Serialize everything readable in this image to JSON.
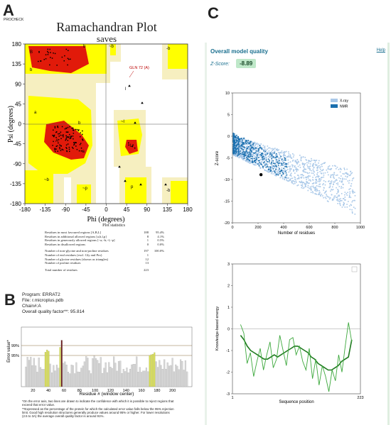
{
  "panelA": {
    "letter": "A",
    "tag": "PROCHECK",
    "title": "Ramachandran Plot",
    "subtitle": "saves",
    "ylabel": "Psi (degrees)",
    "xlabel": "Phi (degrees)",
    "xticks": [
      "-180",
      "-135",
      "-90",
      "-45",
      "0",
      "45",
      "90",
      "135",
      "180"
    ],
    "yticks": [
      "180",
      "135",
      "90",
      "45",
      "0",
      "-45",
      "-90",
      "-135",
      "-180"
    ],
    "annotation": "GLN 72 (A)",
    "region_labels": [
      "B",
      "b",
      "b",
      "a",
      "A",
      "b",
      "L",
      "l",
      "-b",
      "~b",
      "p",
      "~l",
      "~a",
      "~p",
      "-b",
      "~b"
    ],
    "stats_title": "Plot statistics",
    "stats": [
      {
        "label": "Residues in most favoured regions [A,B,L]",
        "n": "188",
        "p": "95.4%"
      },
      {
        "label": "Residues in additional allowed regions [a,b,l,p]",
        "n": "8",
        "p": "4.1%"
      },
      {
        "label": "Residues in generously allowed regions [~a,~b,~l,~p]",
        "n": "1",
        "p": "0.5%"
      },
      {
        "label": "Residues in disallowed regions",
        "n": "0",
        "p": "0.0%"
      },
      {
        "label": "Number of non-glycine and non-proline residues",
        "n": "197",
        "p": "100.0%"
      },
      {
        "label": "Number of end residues (excl. Gly and Pro)",
        "n": "1",
        "p": ""
      },
      {
        "label": "Number of glycine residues (shown as triangles)",
        "n": "12",
        "p": ""
      },
      {
        "label": "Number of proline residues",
        "n": "13",
        "p": ""
      },
      {
        "label": "Total number of residues",
        "n": "223",
        "p": ""
      }
    ]
  },
  "panelB": {
    "letter": "B",
    "program": "Program: ERRAT2",
    "file": "File: r.microplus.pdb",
    "chain": "Chain#:A",
    "quality": "Overall quality factor**: 95.814",
    "ylabel": "Error value*",
    "xlabel": "Residue # (window center)",
    "line99": "99%",
    "line95": "95%",
    "xticks": [
      "20",
      "40",
      "60",
      "80",
      "100",
      "120",
      "140",
      "160",
      "180",
      "200"
    ],
    "footnote1": "*On the error axis, two lines are drawn to indicate the confidence with which it is possible to reject regions that exceed that error value.",
    "footnote2": "**Expressed as the percentage of the protein for which the calculated error value falls below the 95% rejection limit.  Good high resolution structures generally produce values around 95% or higher.  For lower resolutions (2.5 to 3A) the average overall quality factor is around 91%."
  },
  "panelC": {
    "letter": "C",
    "heading": "Overall model quality",
    "help": "Help",
    "zscore_label": "Z-Score:",
    "zscore_value": "-8.89",
    "accent": "#1a6f8f",
    "badge_bg": "#bfe8c9"
  },
  "chart_data": [
    {
      "type": "scatter",
      "title": "",
      "xlabel": "Number of residues",
      "ylabel": "Z-score",
      "xlim": [
        0,
        1000
      ],
      "ylim": [
        -20,
        10
      ],
      "xticks": [
        "0",
        "200",
        "400",
        "600",
        "800",
        "1000"
      ],
      "yticks": [
        "10",
        "5",
        "0",
        "-5",
        "-10",
        "-15",
        "-20"
      ],
      "legend": [
        "X-ray",
        "NMR"
      ],
      "legend_placement": "top-right",
      "series_colors": [
        "#a9c8e8",
        "#1a6fae"
      ],
      "marker": {
        "x": 223,
        "y": -8.89
      }
    },
    {
      "type": "line",
      "title": "",
      "xlabel": "Sequence position",
      "ylabel": "Knowledge-based energy",
      "xlim": [
        1,
        223
      ],
      "ylim": [
        -3,
        3
      ],
      "xticks": [
        "1",
        "223"
      ],
      "yticks": [
        "3",
        "2",
        "1",
        "0",
        "-1",
        "-2",
        "-3"
      ],
      "series": [
        {
          "window": 40,
          "color": "#1f7a1f",
          "values": [
            -0.3,
            -0.5,
            -0.8,
            -1.0,
            -1.1,
            -1.2,
            -1.3,
            -1.4,
            -1.4,
            -1.3,
            -1.2,
            -1.3,
            -1.2,
            -1.1,
            -1.0,
            -0.9,
            -0.8,
            -0.8,
            -0.9,
            -1.0,
            -1.1,
            -1.3,
            -1.4,
            -1.6,
            -1.7,
            -1.8,
            -1.9,
            -1.9,
            -1.8,
            -1.7,
            -1.5,
            -1.4,
            -1.3,
            -0.5
          ]
        },
        {
          "window": 10,
          "color": "#3ca83c",
          "values": [
            0.2,
            -0.2,
            -1.6,
            -1.1,
            -2.2,
            -1.5,
            -0.9,
            -1.9,
            -1.2,
            -0.6,
            -1.8,
            -1.4,
            -0.3,
            -1.0,
            -1.7,
            -0.5,
            -0.4,
            -1.2,
            -0.8,
            -1.5,
            -1.9,
            -0.9,
            -2.3,
            -1.4,
            -2.6,
            -1.7,
            -2.2,
            -2.9,
            -1.9,
            -2.4,
            -1.2,
            -2.0,
            -0.8,
            0.3,
            -0.6
          ]
        }
      ]
    }
  ]
}
